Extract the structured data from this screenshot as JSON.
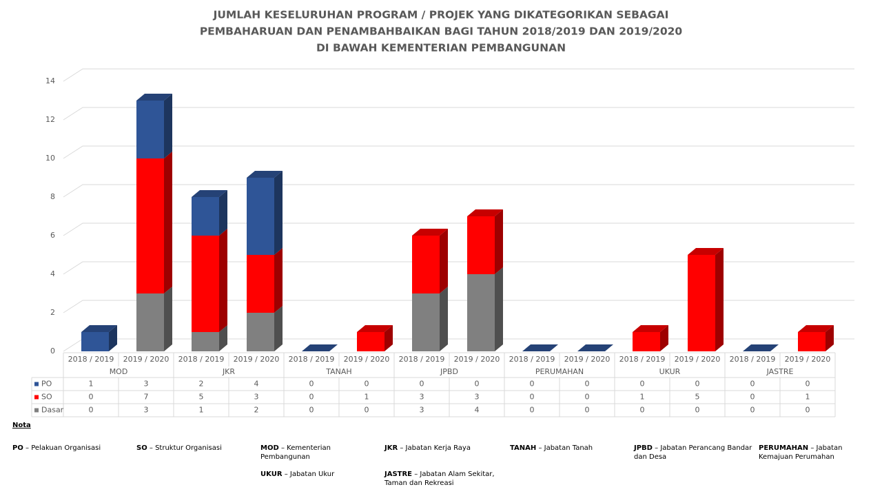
{
  "chart_data": {
    "type": "bar3d_stacked",
    "title": [
      "JUMLAH KESELURUHAN PROGRAM / PROJEK YANG DIKATEGORIKAN SEBAGAI",
      "PEMBAHARUAN DAN PENAMBAHBAIKAN BAGI TAHUN 2018/2019 DAN 2019/2020",
      "DI BAWAH KEMENTERIAN PEMBANGUNAN"
    ],
    "categories": [
      "2018 / 2019",
      "2019 / 2020",
      "2018 / 2019",
      "2019 / 2020",
      "2018 / 2019",
      "2019 / 2020",
      "2018 / 2019",
      "2019 / 2020",
      "2018 / 2019",
      "2019 / 2020",
      "2018 / 2019",
      "2019 / 2020",
      "2018 / 2019",
      "2019 / 2020"
    ],
    "groups": [
      "MOD",
      "JKR",
      "TANAH",
      "JPBD",
      "PERUMAHAN",
      "UKUR",
      "JASTRE"
    ],
    "series": [
      {
        "name": "Dasar",
        "color": "#808080",
        "values": [
          0,
          3,
          1,
          2,
          0,
          0,
          3,
          4,
          0,
          0,
          0,
          0,
          0,
          0
        ]
      },
      {
        "name": "SO",
        "color": "#ff0000",
        "values": [
          0,
          7,
          5,
          3,
          0,
          1,
          3,
          3,
          0,
          0,
          1,
          5,
          0,
          1
        ]
      },
      {
        "name": "PO",
        "color": "#2f5597",
        "values": [
          1,
          3,
          2,
          4,
          0,
          0,
          0,
          0,
          0,
          0,
          0,
          0,
          0,
          0
        ]
      }
    ],
    "ylim": [
      0,
      14
    ],
    "yticks": [
      0,
      2,
      4,
      6,
      8,
      10,
      12,
      14
    ],
    "grid": true,
    "notes_title": "Nota",
    "notes": [
      {
        "term": "PO",
        "text": "– Pelakuan Organisasi"
      },
      {
        "term": "SO",
        "text": "– Struktur Organisasi"
      },
      {
        "term": "MOD",
        "text": "– Kementerian Pembangunan"
      },
      {
        "term": "JKR",
        "text": "– Jabatan Kerja Raya"
      },
      {
        "term": "TANAH",
        "text": "– Jabatan Tanah"
      },
      {
        "term": "JPBD",
        "text": "– Jabatan Perancang Bandar dan Desa"
      },
      {
        "term": "PERUMAHAN",
        "text": "– Jabatan Kemajuan Perumahan"
      },
      {
        "term": "UKUR",
        "text": "– Jabatan Ukur"
      },
      {
        "term": "JASTRE",
        "text": "– Jabatan Alam Sekitar, Taman dan Rekreasi"
      }
    ]
  }
}
